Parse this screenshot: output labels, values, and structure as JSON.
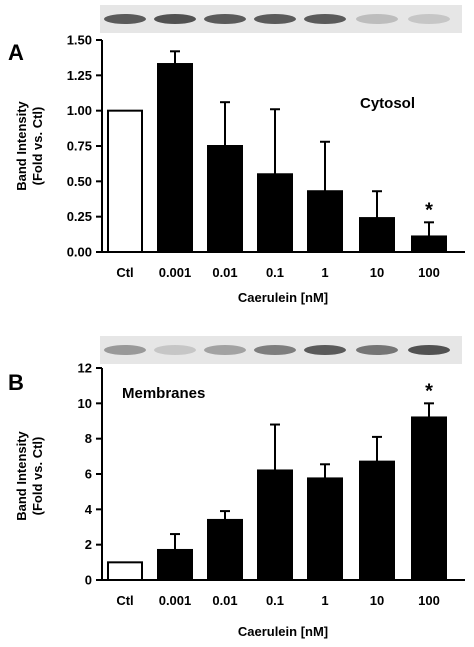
{
  "figure": {
    "x_axis_title": "Caerulein [nM]",
    "y_axis_title_line1": "Band Intensity",
    "y_axis_title_line2": "(Fold vs. Ctl)"
  },
  "chart_data": [
    {
      "type": "bar",
      "panel_letter": "A",
      "panel_name": "Cytosol",
      "categories": [
        "Ctl",
        "0.001",
        "0.01",
        "0.1",
        "1",
        "10",
        "100"
      ],
      "values": [
        1.0,
        1.33,
        0.75,
        0.55,
        0.43,
        0.24,
        0.11
      ],
      "errors": [
        0.0,
        0.09,
        0.31,
        0.46,
        0.35,
        0.19,
        0.1
      ],
      "bar_fill": [
        "white",
        "black",
        "black",
        "black",
        "black",
        "black",
        "black"
      ],
      "significance": [
        "",
        "",
        "",
        "",
        "",
        "",
        "*"
      ],
      "ylim": [
        0,
        1.5
      ],
      "yticks": [
        "0.00",
        "0.25",
        "0.50",
        "0.75",
        "1.00",
        "1.25",
        "1.50"
      ],
      "xlabel": "Caerulein [nM]",
      "ylabel": "Band Intensity (Fold vs. Ctl)",
      "blot_band_intensity": [
        0.75,
        0.8,
        0.75,
        0.75,
        0.75,
        0.2,
        0.15
      ],
      "colors": {
        "bar_black": "#000000",
        "bar_white": "#ffffff"
      }
    },
    {
      "type": "bar",
      "panel_letter": "B",
      "panel_name": "Membranes",
      "categories": [
        "Ctl",
        "0.001",
        "0.01",
        "0.1",
        "1",
        "10",
        "100"
      ],
      "values": [
        1.0,
        1.7,
        3.4,
        6.2,
        5.75,
        6.7,
        9.2
      ],
      "errors": [
        0.0,
        0.9,
        0.5,
        2.6,
        0.8,
        1.4,
        0.8
      ],
      "bar_fill": [
        "white",
        "black",
        "black",
        "black",
        "black",
        "black",
        "black"
      ],
      "significance": [
        "",
        "",
        "",
        "",
        "",
        "",
        "*"
      ],
      "ylim": [
        0,
        12
      ],
      "yticks": [
        "0",
        "2",
        "4",
        "6",
        "8",
        "10",
        "12"
      ],
      "xlabel": "Caerulein [nM]",
      "ylabel": "Band Intensity (Fold vs. Ctl)",
      "blot_band_intensity": [
        0.4,
        0.15,
        0.35,
        0.55,
        0.75,
        0.6,
        0.8
      ],
      "colors": {
        "bar_black": "#000000",
        "bar_white": "#ffffff"
      }
    }
  ]
}
